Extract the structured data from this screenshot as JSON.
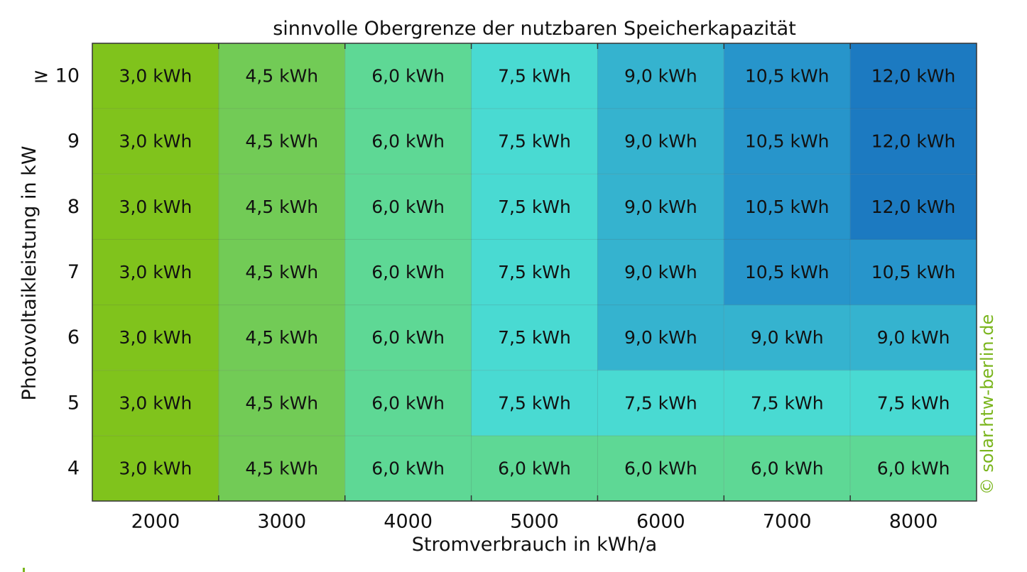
{
  "chart_data": {
    "type": "heatmap",
    "title": "sinnvolle Obergrenze der nutzbaren Speicherkapazität",
    "xlabel": "Stromverbrauch in kWh/a",
    "ylabel": "Photovoltaikleistung in kW",
    "x_categories": [
      "2000",
      "3000",
      "4000",
      "5000",
      "6000",
      "7000",
      "8000"
    ],
    "y_categories": [
      "≥ 10",
      "9",
      "8",
      "7",
      "6",
      "5",
      "4"
    ],
    "unit": "kWh",
    "values": [
      [
        3.0,
        4.5,
        6.0,
        7.5,
        9.0,
        10.5,
        12.0
      ],
      [
        3.0,
        4.5,
        6.0,
        7.5,
        9.0,
        10.5,
        12.0
      ],
      [
        3.0,
        4.5,
        6.0,
        7.5,
        9.0,
        10.5,
        12.0
      ],
      [
        3.0,
        4.5,
        6.0,
        7.5,
        9.0,
        10.5,
        10.5
      ],
      [
        3.0,
        4.5,
        6.0,
        7.5,
        9.0,
        9.0,
        9.0
      ],
      [
        3.0,
        4.5,
        6.0,
        7.5,
        7.5,
        7.5,
        7.5
      ],
      [
        3.0,
        4.5,
        6.0,
        6.0,
        6.0,
        6.0,
        6.0
      ]
    ],
    "cell_labels": [
      [
        "3,0 kWh",
        "4,5 kWh",
        "6,0 kWh",
        "7,5 kWh",
        "9,0 kWh",
        "10,5 kWh",
        "12,0 kWh"
      ],
      [
        "3,0 kWh",
        "4,5 kWh",
        "6,0 kWh",
        "7,5 kWh",
        "9,0 kWh",
        "10,5 kWh",
        "12,0 kWh"
      ],
      [
        "3,0 kWh",
        "4,5 kWh",
        "6,0 kWh",
        "7,5 kWh",
        "9,0 kWh",
        "10,5 kWh",
        "12,0 kWh"
      ],
      [
        "3,0 kWh",
        "4,5 kWh",
        "6,0 kWh",
        "7,5 kWh",
        "9,0 kWh",
        "10,5 kWh",
        "10,5 kWh"
      ],
      [
        "3,0 kWh",
        "4,5 kWh",
        "6,0 kWh",
        "7,5 kWh",
        "9,0 kWh",
        "9,0 kWh",
        "9,0 kWh"
      ],
      [
        "3,0 kWh",
        "4,5 kWh",
        "6,0 kWh",
        "7,5 kWh",
        "7,5 kWh",
        "7,5 kWh",
        "7,5 kWh"
      ],
      [
        "3,0 kWh",
        "4,5 kWh",
        "6,0 kWh",
        "6,0 kWh",
        "6,0 kWh",
        "6,0 kWh",
        "6,0 kWh"
      ]
    ],
    "color_scale": {
      "3.0": "#80c31c",
      "4.5": "#72cb56",
      "6.0": "#5ed895",
      "7.5": "#49dad2",
      "9.0": "#35b3cf",
      "10.5": "#2795cb",
      "12.0": "#1c7ac1"
    },
    "grid": true,
    "legend": "none"
  },
  "copyright": "© solar.htw-berlin.de"
}
